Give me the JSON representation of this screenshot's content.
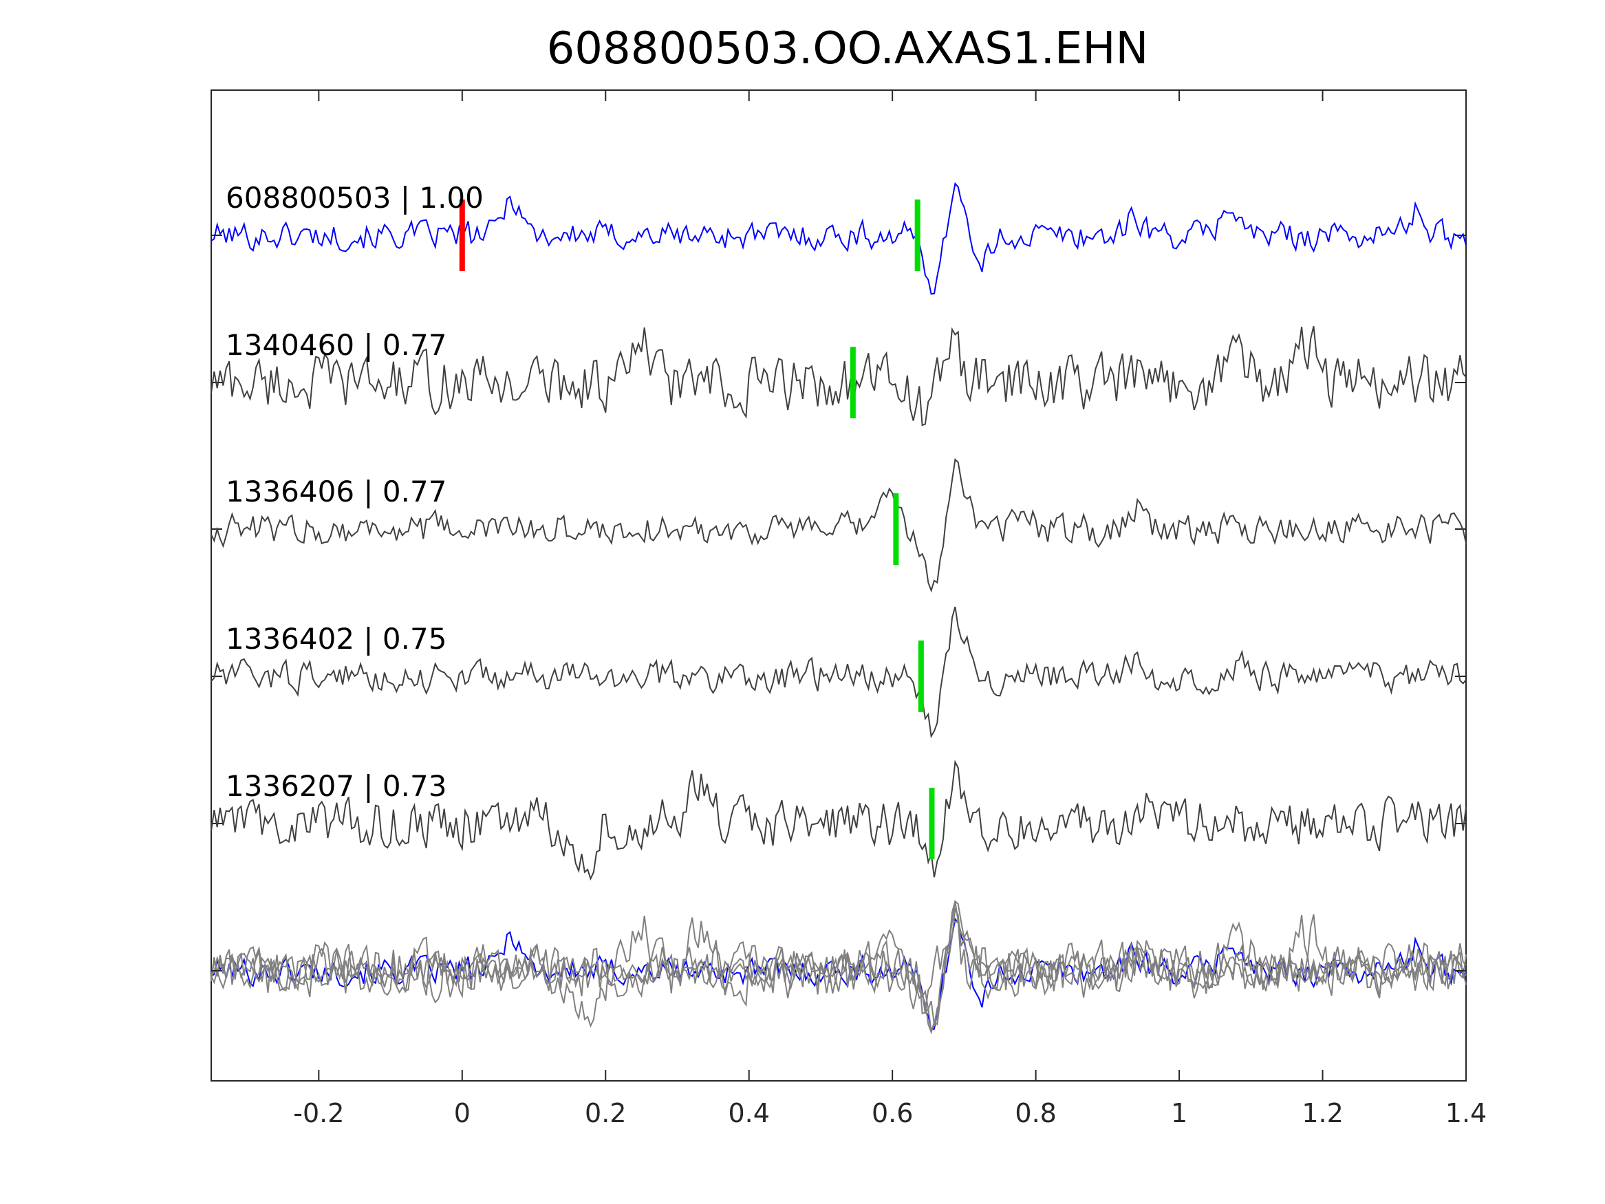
{
  "chart_data": {
    "type": "line",
    "title": "608800503.OO.AXAS1.EHN",
    "xlabel": "",
    "ylabel": "",
    "xlim": [
      -0.35,
      1.4
    ],
    "xticks": [
      -0.2,
      0,
      0.2,
      0.4,
      0.6,
      0.8,
      1,
      1.2,
      1.4
    ],
    "xtick_labels": [
      "-0.2",
      "0",
      "0.2",
      "0.4",
      "0.6",
      "0.8",
      "1",
      "1.2",
      "1.4"
    ],
    "grid": false,
    "colors": {
      "template": "#0000ff",
      "match": "#404040",
      "stack": "#808080",
      "origin_pick": "#ff0000",
      "phase_pick": "#00dd00",
      "axis": "#262626"
    },
    "series": [
      {
        "name": "608800503 | 1.00",
        "role": "template",
        "pick_time": 0.635,
        "origin_time": 0.0,
        "events": [
          {
            "t": 0.07,
            "a": 0.9
          },
          {
            "t": 0.69,
            "a": 1.4
          },
          {
            "t": 0.66,
            "a": -1.2
          },
          {
            "t": 0.72,
            "a": -0.9
          },
          {
            "t": 1.07,
            "a": 0.7
          },
          {
            "t": 1.33,
            "a": 0.55
          },
          {
            "t": 0.94,
            "a": 0.4
          }
        ]
      },
      {
        "name": "1340460 | 0.77",
        "role": "match",
        "pick_time": 0.545,
        "events": [
          {
            "t": 0.25,
            "a": 0.9
          },
          {
            "t": 0.68,
            "a": 1.0
          },
          {
            "t": 0.65,
            "a": -0.9
          },
          {
            "t": 1.08,
            "a": 1.0
          },
          {
            "t": 1.18,
            "a": 0.9
          },
          {
            "t": 0.38,
            "a": -0.7
          }
        ]
      },
      {
        "name": "1336406 | 0.77",
        "role": "match",
        "pick_time": 0.605,
        "events": [
          {
            "t": 0.69,
            "a": 1.6
          },
          {
            "t": 0.655,
            "a": -1.4
          },
          {
            "t": 0.59,
            "a": 0.8
          },
          {
            "t": 0.94,
            "a": 0.6
          },
          {
            "t": 0.78,
            "a": 0.3
          }
        ]
      },
      {
        "name": "1336402 | 0.75",
        "role": "match",
        "pick_time": 0.64,
        "events": [
          {
            "t": 0.69,
            "a": 1.4
          },
          {
            "t": 0.655,
            "a": -1.2
          },
          {
            "t": 0.94,
            "a": 0.35
          },
          {
            "t": 1.08,
            "a": 0.3
          }
        ]
      },
      {
        "name": "1336207 | 0.73",
        "role": "match",
        "pick_time": 0.655,
        "events": [
          {
            "t": 0.69,
            "a": 1.1
          },
          {
            "t": 0.655,
            "a": -0.9
          },
          {
            "t": 0.17,
            "a": -1.2
          },
          {
            "t": 0.33,
            "a": 1.0
          },
          {
            "t": 0.96,
            "a": 0.8
          }
        ]
      }
    ]
  }
}
